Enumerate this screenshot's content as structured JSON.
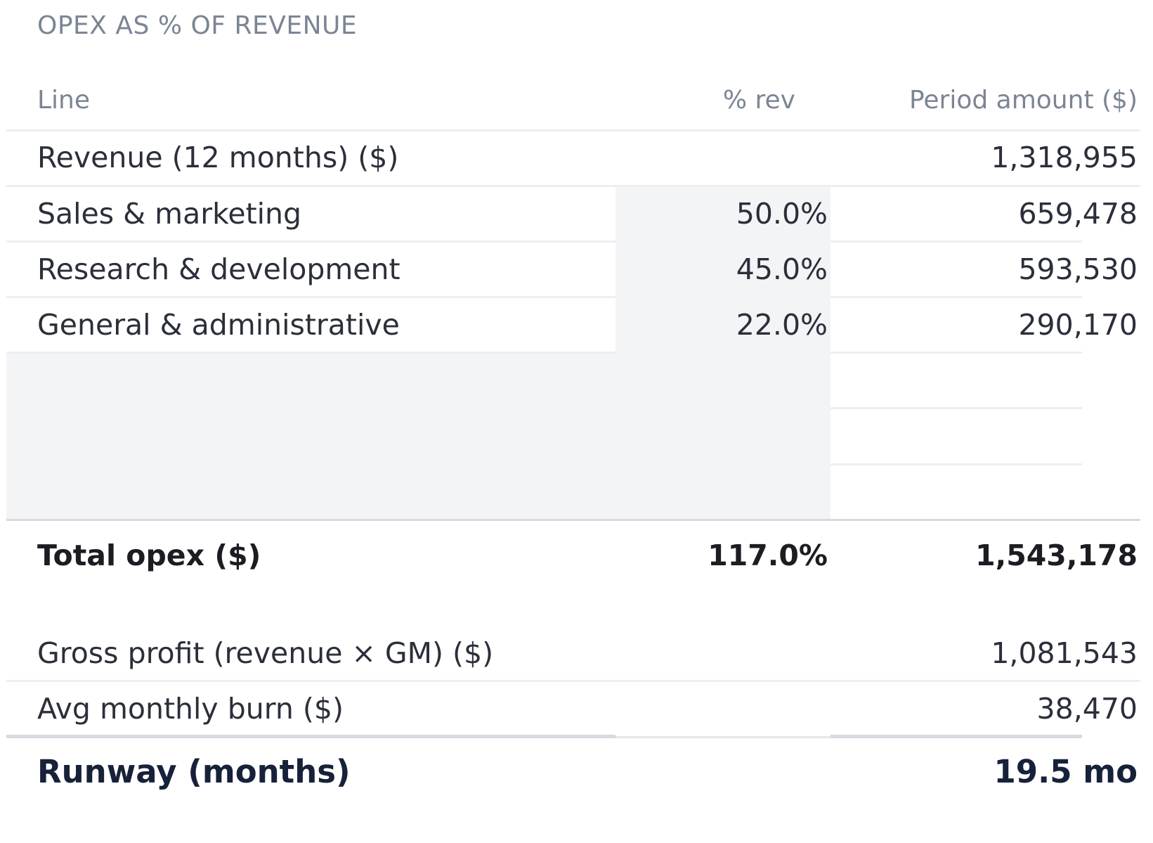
{
  "title": "OPEX AS % OF REVENUE",
  "columns": {
    "line": "Line",
    "pct": "% rev",
    "amount": "Period amount ($)"
  },
  "revenue_row": {
    "label": "Revenue (12 months) ($)",
    "amount": "1,318,955"
  },
  "opex_rows": [
    {
      "label": "Sales & marketing",
      "pct": "50.0%",
      "amount": "659,478"
    },
    {
      "label": "Research & development",
      "pct": "45.0%",
      "amount": "593,530"
    },
    {
      "label": "General & administrative",
      "pct": "22.0%",
      "amount": "290,170"
    }
  ],
  "total_row": {
    "label": "Total opex ($)",
    "pct": "117.0%",
    "amount": "1,543,178"
  },
  "gross_profit_row": {
    "label": "Gross profit (revenue × GM) ($)",
    "amount": "1,081,543"
  },
  "burn_row": {
    "label": "Avg monthly burn ($)",
    "amount": "38,470"
  },
  "runway_row": {
    "label": "Runway (months)",
    "value": "19.5 mo"
  }
}
